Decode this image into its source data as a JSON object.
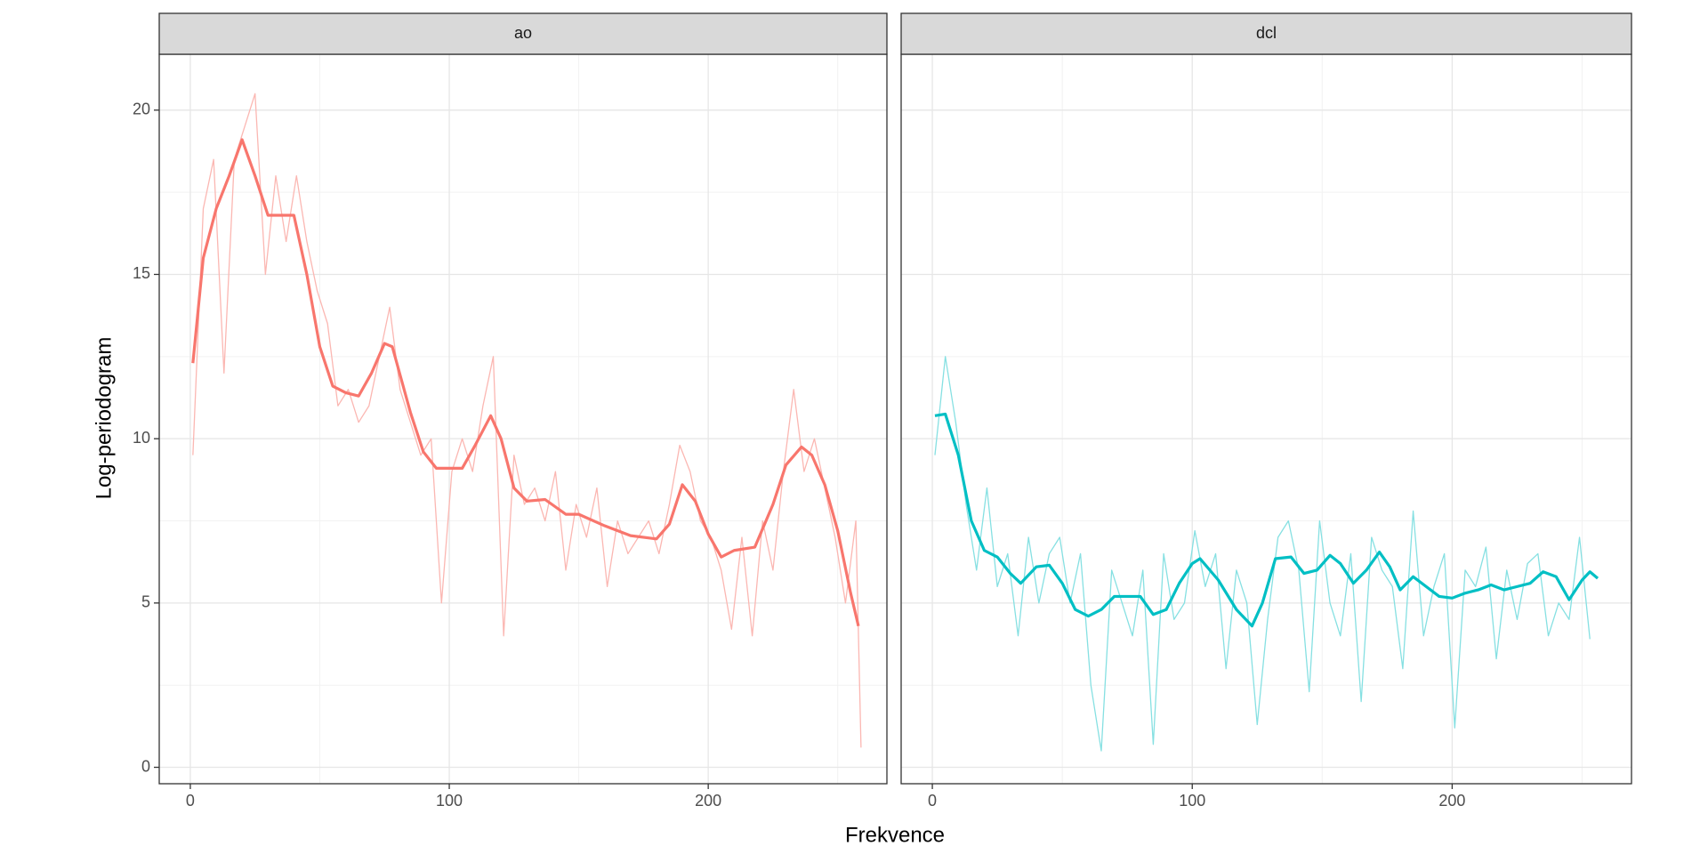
{
  "axis_labels": {
    "x": "Frekvence",
    "y": "Log-periodogram"
  },
  "chart_data": [
    {
      "type": "line",
      "title": "ao",
      "xlim": [
        -12,
        269
      ],
      "ylim": [
        -0.5,
        21.7
      ],
      "xticks": [
        0,
        100,
        200
      ],
      "yticks": [
        0,
        5,
        10,
        15,
        20
      ],
      "grid": true,
      "series": [
        {
          "color": "#fbb7b2",
          "x": [
            1,
            5,
            9,
            13,
            17,
            21,
            25,
            29,
            33,
            37,
            41,
            45,
            49,
            53,
            57,
            61,
            65,
            69,
            73,
            77,
            81,
            85,
            89,
            93,
            97,
            101,
            105,
            109,
            113,
            117,
            121,
            125,
            129,
            133,
            137,
            141,
            145,
            149,
            153,
            157,
            161,
            165,
            169,
            173,
            177,
            181,
            185,
            189,
            193,
            197,
            201,
            205,
            209,
            213,
            217,
            221,
            225,
            229,
            233,
            237,
            241,
            245,
            249,
            253,
            257,
            259
          ],
          "values": [
            9.5,
            17,
            18.5,
            12,
            18.5,
            19.5,
            20.5,
            15,
            18,
            16,
            18,
            16,
            14.5,
            13.5,
            11,
            11.5,
            10.5,
            11,
            12.5,
            14,
            11.5,
            10.5,
            9.5,
            10,
            5,
            9,
            10,
            9,
            11,
            12.5,
            4,
            9.5,
            8,
            8.5,
            7.5,
            9,
            6,
            8,
            7,
            8.5,
            5.5,
            7.5,
            6.5,
            7,
            7.5,
            6.5,
            8,
            9.8,
            9,
            7.5,
            7,
            6,
            4.2,
            7,
            4,
            7.5,
            6,
            9,
            11.5,
            9,
            10,
            8.5,
            7,
            5,
            7.5,
            0.6
          ]
        },
        {
          "color": "#f8766d",
          "x": [
            1,
            5,
            10,
            15,
            20,
            25,
            30,
            35,
            40,
            45,
            50,
            55,
            60,
            65,
            70,
            75,
            78,
            85,
            90,
            95,
            100,
            105,
            110,
            116,
            120,
            125,
            130,
            137,
            145,
            150,
            160,
            170,
            180,
            185,
            190,
            195,
            200,
            205,
            210,
            218,
            225,
            230,
            236,
            240,
            245,
            250,
            255,
            258
          ],
          "values": [
            12.3,
            15.5,
            17,
            18,
            19.1,
            18,
            16.8,
            16.8,
            16.8,
            15,
            12.8,
            11.6,
            11.4,
            11.3,
            12,
            12.9,
            12.8,
            10.8,
            9.6,
            9.1,
            9.1,
            9.1,
            9.8,
            10.7,
            10,
            8.5,
            8.1,
            8.15,
            7.7,
            7.7,
            7.35,
            7.05,
            6.95,
            7.4,
            8.6,
            8.1,
            7.1,
            6.4,
            6.6,
            6.7,
            8,
            9.2,
            9.75,
            9.5,
            8.6,
            7.2,
            5.3,
            4.3
          ]
        }
      ]
    },
    {
      "type": "line",
      "title": "dcl",
      "xlim": [
        -12,
        269
      ],
      "ylim": [
        -0.5,
        21.7
      ],
      "xticks": [
        0,
        100,
        200
      ],
      "yticks": [
        0,
        5,
        10,
        15,
        20
      ],
      "grid": true,
      "series": [
        {
          "color": "#86e0e2",
          "x": [
            1,
            5,
            9,
            13,
            17,
            21,
            25,
            29,
            33,
            37,
            41,
            45,
            49,
            53,
            57,
            61,
            65,
            69,
            73,
            77,
            81,
            85,
            89,
            93,
            97,
            101,
            105,
            109,
            113,
            117,
            121,
            125,
            129,
            133,
            137,
            141,
            145,
            149,
            153,
            157,
            161,
            165,
            169,
            173,
            177,
            181,
            185,
            189,
            193,
            197,
            201,
            205,
            209,
            213,
            217,
            221,
            225,
            229,
            233,
            237,
            241,
            245,
            249,
            253
          ],
          "values": [
            9.5,
            12.5,
            10.5,
            8,
            6,
            8.5,
            5.5,
            6.5,
            4,
            7,
            5,
            6.5,
            7,
            5,
            6.5,
            2.5,
            0.5,
            6,
            5,
            4,
            6,
            0.7,
            6.5,
            4.5,
            5,
            7.2,
            5.5,
            6.5,
            3,
            6,
            5,
            1.3,
            4.5,
            7,
            7.5,
            6,
            2.3,
            7.5,
            5,
            4,
            6.5,
            2,
            7,
            6,
            5.5,
            3,
            7.8,
            4,
            5.5,
            6.5,
            1.2,
            6,
            5.5,
            6.7,
            3.3,
            6,
            4.5,
            6.2,
            6.5,
            4,
            5,
            4.5,
            7,
            3.9
          ]
        },
        {
          "color": "#00bfc4",
          "x": [
            1,
            5,
            10,
            15,
            20,
            25,
            30,
            34,
            40,
            45,
            50,
            55,
            60,
            65,
            70,
            75,
            80,
            85,
            90,
            95,
            100,
            103,
            110,
            117,
            123,
            127,
            132,
            138,
            143,
            148,
            153,
            157,
            162,
            167,
            172,
            176,
            180,
            185,
            190,
            195,
            200,
            205,
            210,
            215,
            220,
            225,
            230,
            235,
            240,
            245,
            250,
            253,
            256
          ],
          "values": [
            10.7,
            10.75,
            9.5,
            7.5,
            6.6,
            6.4,
            5.9,
            5.6,
            6.1,
            6.15,
            5.6,
            4.8,
            4.6,
            4.8,
            5.2,
            5.2,
            5.2,
            4.65,
            4.8,
            5.6,
            6.2,
            6.35,
            5.7,
            4.8,
            4.3,
            5,
            6.35,
            6.4,
            5.9,
            6,
            6.45,
            6.2,
            5.6,
            6,
            6.55,
            6.1,
            5.4,
            5.8,
            5.5,
            5.2,
            5.15,
            5.3,
            5.4,
            5.55,
            5.4,
            5.5,
            5.6,
            5.95,
            5.8,
            5.1,
            5.7,
            5.95,
            5.75
          ]
        }
      ]
    }
  ]
}
